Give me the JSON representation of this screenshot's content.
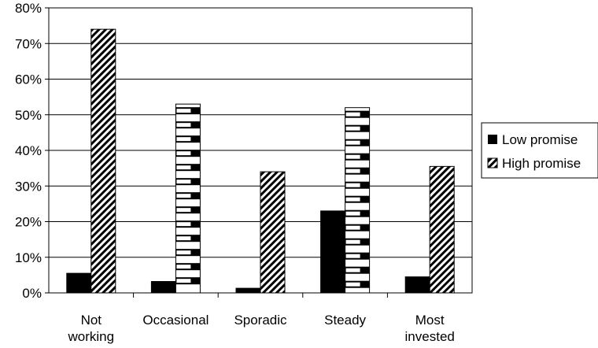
{
  "chart_data": {
    "type": "bar",
    "title": "",
    "xlabel": "",
    "ylabel": "",
    "categories": [
      [
        "Not",
        "working"
      ],
      [
        "Occasional"
      ],
      [
        "Sporadic"
      ],
      [
        "Steady"
      ],
      [
        "Most",
        "invested"
      ]
    ],
    "series": [
      {
        "name": "Low promise",
        "values": [
          5.5,
          3.2,
          1.3,
          23,
          4.5
        ],
        "fill": "solid"
      },
      {
        "name": "High promise",
        "values": [
          74,
          53,
          34,
          52,
          35.5
        ],
        "fill": "hatch",
        "patterned_categories": [
          1,
          3
        ]
      }
    ],
    "ylim": [
      0,
      80
    ],
    "yticks": [
      "0%",
      "10%",
      "20%",
      "30%",
      "40%",
      "50%",
      "60%",
      "70%",
      "80%"
    ],
    "grid": true,
    "legend_position": "right",
    "colors": {
      "low": "#000000",
      "high_bg": "#ffffff",
      "grid": "#000000"
    }
  }
}
